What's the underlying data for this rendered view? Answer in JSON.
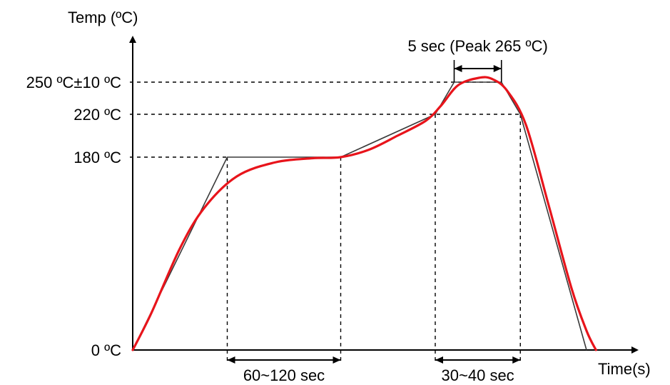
{
  "chart_data": {
    "type": "line",
    "title": "",
    "xlabel": "Time(s)",
    "ylabel": "Temp (ºC)",
    "y_tick_labels": [
      {
        "value": 0,
        "label": "0 ºC"
      },
      {
        "value": 180,
        "label": "180 ºC"
      },
      {
        "value": 220,
        "label": "220 ºC"
      },
      {
        "value": 250,
        "label": "250 ºC±10 ºC"
      }
    ],
    "annotations": {
      "preheat": "60~120 sec",
      "reflow": "30~40 sec",
      "peak": "5 sec (Peak 265 ºC)"
    },
    "grid": false,
    "colors": {
      "axis": "#000000",
      "ideal_profile": "#3a3a3a",
      "actual_profile": "#e8141b"
    },
    "series": [
      {
        "role": "ideal",
        "points": [
          {
            "x": 0,
            "y": 0
          },
          {
            "x": 50,
            "y": 180
          },
          {
            "x": 110,
            "y": 180
          },
          {
            "x": 160,
            "y": 220
          },
          {
            "x": 170,
            "y": 250
          },
          {
            "x": 195,
            "y": 250
          },
          {
            "x": 205,
            "y": 220
          },
          {
            "x": 240,
            "y": 0
          }
        ]
      },
      {
        "role": "actual",
        "points": [
          {
            "x": 0,
            "y": 0
          },
          {
            "x": 10,
            "y": 35
          },
          {
            "x": 25,
            "y": 95
          },
          {
            "x": 38,
            "y": 133
          },
          {
            "x": 55,
            "y": 162
          },
          {
            "x": 75,
            "y": 175
          },
          {
            "x": 95,
            "y": 179
          },
          {
            "x": 110,
            "y": 180
          },
          {
            "x": 125,
            "y": 187
          },
          {
            "x": 140,
            "y": 200
          },
          {
            "x": 155,
            "y": 214
          },
          {
            "x": 163,
            "y": 228
          },
          {
            "x": 172,
            "y": 247
          },
          {
            "x": 183,
            "y": 254
          },
          {
            "x": 190,
            "y": 253
          },
          {
            "x": 198,
            "y": 242
          },
          {
            "x": 208,
            "y": 210
          },
          {
            "x": 220,
            "y": 135
          },
          {
            "x": 232,
            "y": 58
          },
          {
            "x": 240,
            "y": 18
          },
          {
            "x": 245,
            "y": 0
          }
        ]
      }
    ],
    "markers": {
      "preheat_start_x": 50,
      "preheat_end_x": 110,
      "reflow_start_x": 160,
      "reflow_end_x": 205,
      "peak_start_x": 170,
      "peak_end_x": 195
    }
  }
}
